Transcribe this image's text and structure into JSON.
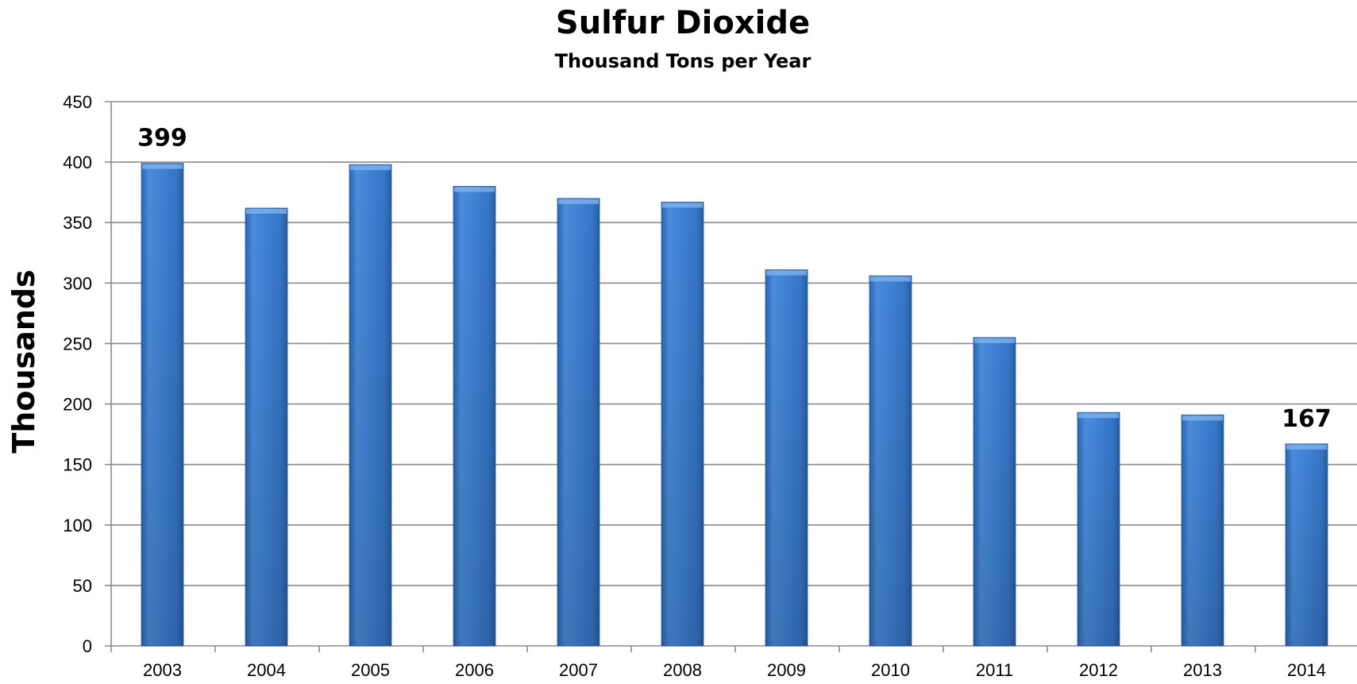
{
  "chart_data": {
    "type": "bar",
    "title": "Sulfur Dioxide",
    "subtitle": "Thousand Tons per Year",
    "xlabel": "",
    "ylabel": "Thousands",
    "categories": [
      "2003",
      "2004",
      "2005",
      "2006",
      "2007",
      "2008",
      "2009",
      "2010",
      "2011",
      "2012",
      "2013",
      "2014"
    ],
    "values": [
      399,
      362,
      398,
      380,
      370,
      367,
      311,
      306,
      255,
      193,
      191,
      167
    ],
    "data_labels": [
      {
        "category": "2003",
        "text": "399"
      },
      {
        "category": "2014",
        "text": "167"
      }
    ],
    "ylim": [
      0,
      450
    ],
    "yticks": [
      0,
      50,
      100,
      150,
      200,
      250,
      300,
      350,
      400,
      450
    ],
    "grid": true,
    "legend": "none",
    "colors": {
      "bar": "#3c7dd0",
      "bar_dark": "#2a5fa6",
      "bar_light": "#5a9ae6",
      "grid": "#8c8c8c"
    }
  }
}
